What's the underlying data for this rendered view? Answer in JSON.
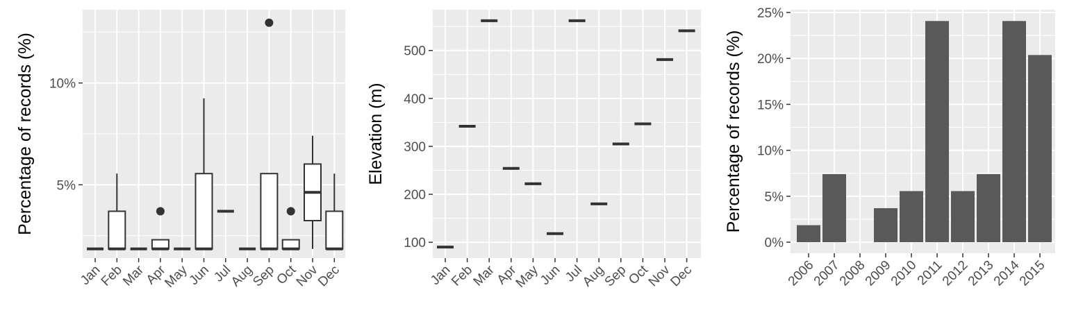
{
  "colors": {
    "panel_background": "#ebebeb",
    "grid_line": "#ffffff",
    "box_fill": "#ffffff",
    "box_stroke": "#333333",
    "bar_fill": "#595959",
    "tick_text": "#4d4d4d"
  },
  "chart_data": [
    {
      "type": "box",
      "title": "",
      "xlabel": "",
      "ylabel": "Percentage of records (%)",
      "categories": [
        "Jan",
        "Feb",
        "Mar",
        "Apr",
        "May",
        "Jun",
        "Jul",
        "Aug",
        "Sep",
        "Oct",
        "Nov",
        "Dec"
      ],
      "boxes": [
        {
          "q1": 1.85,
          "median": 1.85,
          "q3": 1.85,
          "whisker_low": 1.85,
          "whisker_high": 1.85,
          "outliers": []
        },
        {
          "q1": 1.85,
          "median": 1.85,
          "q3": 3.7,
          "whisker_low": 1.85,
          "whisker_high": 5.55,
          "outliers": []
        },
        {
          "q1": 1.85,
          "median": 1.85,
          "q3": 1.85,
          "whisker_low": 1.85,
          "whisker_high": 1.85,
          "outliers": []
        },
        {
          "q1": 1.85,
          "median": 1.85,
          "q3": 2.3,
          "whisker_low": 1.85,
          "whisker_high": 2.3,
          "outliers": [
            3.7
          ]
        },
        {
          "q1": 1.85,
          "median": 1.85,
          "q3": 1.85,
          "whisker_low": 1.85,
          "whisker_high": 1.85,
          "outliers": []
        },
        {
          "q1": 1.85,
          "median": 1.85,
          "q3": 5.55,
          "whisker_low": 1.85,
          "whisker_high": 9.25,
          "outliers": []
        },
        {
          "q1": 3.7,
          "median": 3.7,
          "q3": 3.7,
          "whisker_low": 3.7,
          "whisker_high": 3.7,
          "outliers": []
        },
        {
          "q1": 1.85,
          "median": 1.85,
          "q3": 1.85,
          "whisker_low": 1.85,
          "whisker_high": 1.85,
          "outliers": []
        },
        {
          "q1": 1.85,
          "median": 1.85,
          "q3": 5.55,
          "whisker_low": 1.85,
          "whisker_high": 5.55,
          "outliers": [
            12.96
          ]
        },
        {
          "q1": 1.85,
          "median": 1.85,
          "q3": 2.3,
          "whisker_low": 1.85,
          "whisker_high": 2.3,
          "outliers": [
            3.7
          ]
        },
        {
          "q1": 3.24,
          "median": 4.63,
          "q3": 6.02,
          "whisker_low": 1.85,
          "whisker_high": 7.41,
          "outliers": []
        },
        {
          "q1": 1.85,
          "median": 1.85,
          "q3": 3.7,
          "whisker_low": 1.85,
          "whisker_high": 5.55,
          "outliers": []
        }
      ],
      "ylim": [
        1.4,
        13.6
      ],
      "yticks": [
        5,
        10
      ],
      "ytick_labels": [
        "5%",
        "10%"
      ],
      "grid": true
    },
    {
      "type": "box",
      "title": "",
      "xlabel": "",
      "ylabel": "Elevation (m)",
      "categories": [
        "Jan",
        "Feb",
        "Mar",
        "Apr",
        "May",
        "Jun",
        "Jul",
        "Aug",
        "Sep",
        "Oct",
        "Nov",
        "Dec"
      ],
      "values": [
        90,
        342,
        562,
        254,
        222,
        118,
        562,
        180,
        305,
        347,
        481,
        541
      ],
      "ylim": [
        67,
        585
      ],
      "yticks": [
        100,
        200,
        300,
        400,
        500
      ],
      "ytick_labels": [
        "100",
        "200",
        "300",
        "400",
        "500"
      ],
      "grid": true
    },
    {
      "type": "bar",
      "title": "",
      "xlabel": "",
      "ylabel": "Percentage of records (%)",
      "categories": [
        "2006",
        "2007",
        "2008",
        "2009",
        "2010",
        "2011",
        "2012",
        "2013",
        "2014",
        "2015"
      ],
      "values": [
        1.85,
        7.41,
        0,
        3.7,
        5.56,
        24.07,
        5.56,
        7.41,
        24.07,
        20.37
      ],
      "ylim": [
        -1.2,
        25.3
      ],
      "yticks": [
        0,
        5,
        10,
        15,
        20,
        25
      ],
      "ytick_labels": [
        "0%",
        "5%",
        "10%",
        "15%",
        "20%",
        "25%"
      ],
      "grid": true
    }
  ]
}
